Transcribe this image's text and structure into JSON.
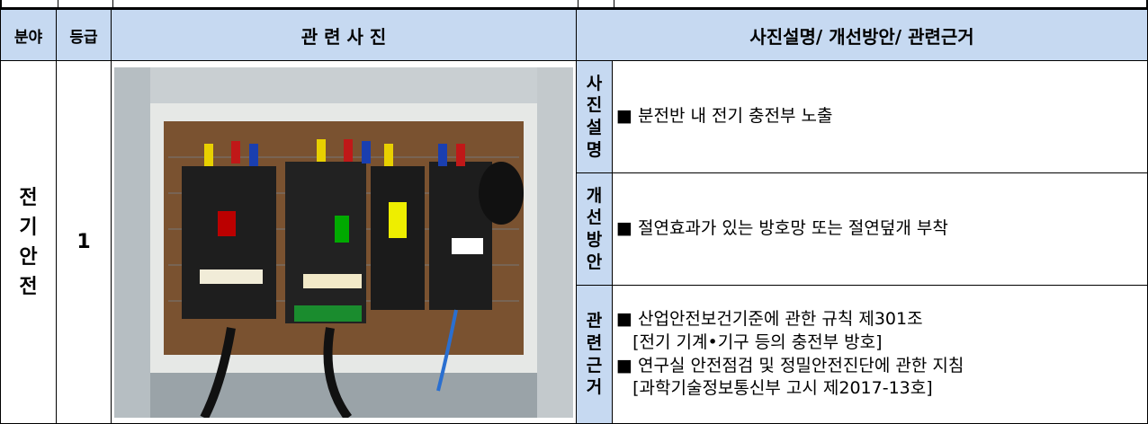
{
  "table": {
    "headers": [
      "분야",
      "등급",
      "관 련 사 진",
      "사진설명/ 개선방안/ 관련근거"
    ],
    "field": "전기안전",
    "grade": "1",
    "sections": [
      {
        "label": "사진설명",
        "lines": [
          "■ 분전반 내 전기 충전부 노출"
        ]
      },
      {
        "label": "개선방안",
        "lines": [
          "■ 절연효과가 있는 방호망 또는 절연덮개 부착"
        ]
      },
      {
        "label": "관련근거",
        "lines": [
          "■ 산업안전보건기준에 관한 규칙 제301조",
          "   [전기 기계•기구 등의 충전부 방호]",
          "■ 연구실 안전점검 및 정밀안전진단에 관한 지침",
          "   [과학기술정보통신부 고시 제2017-13호]"
        ]
      }
    ]
  }
}
